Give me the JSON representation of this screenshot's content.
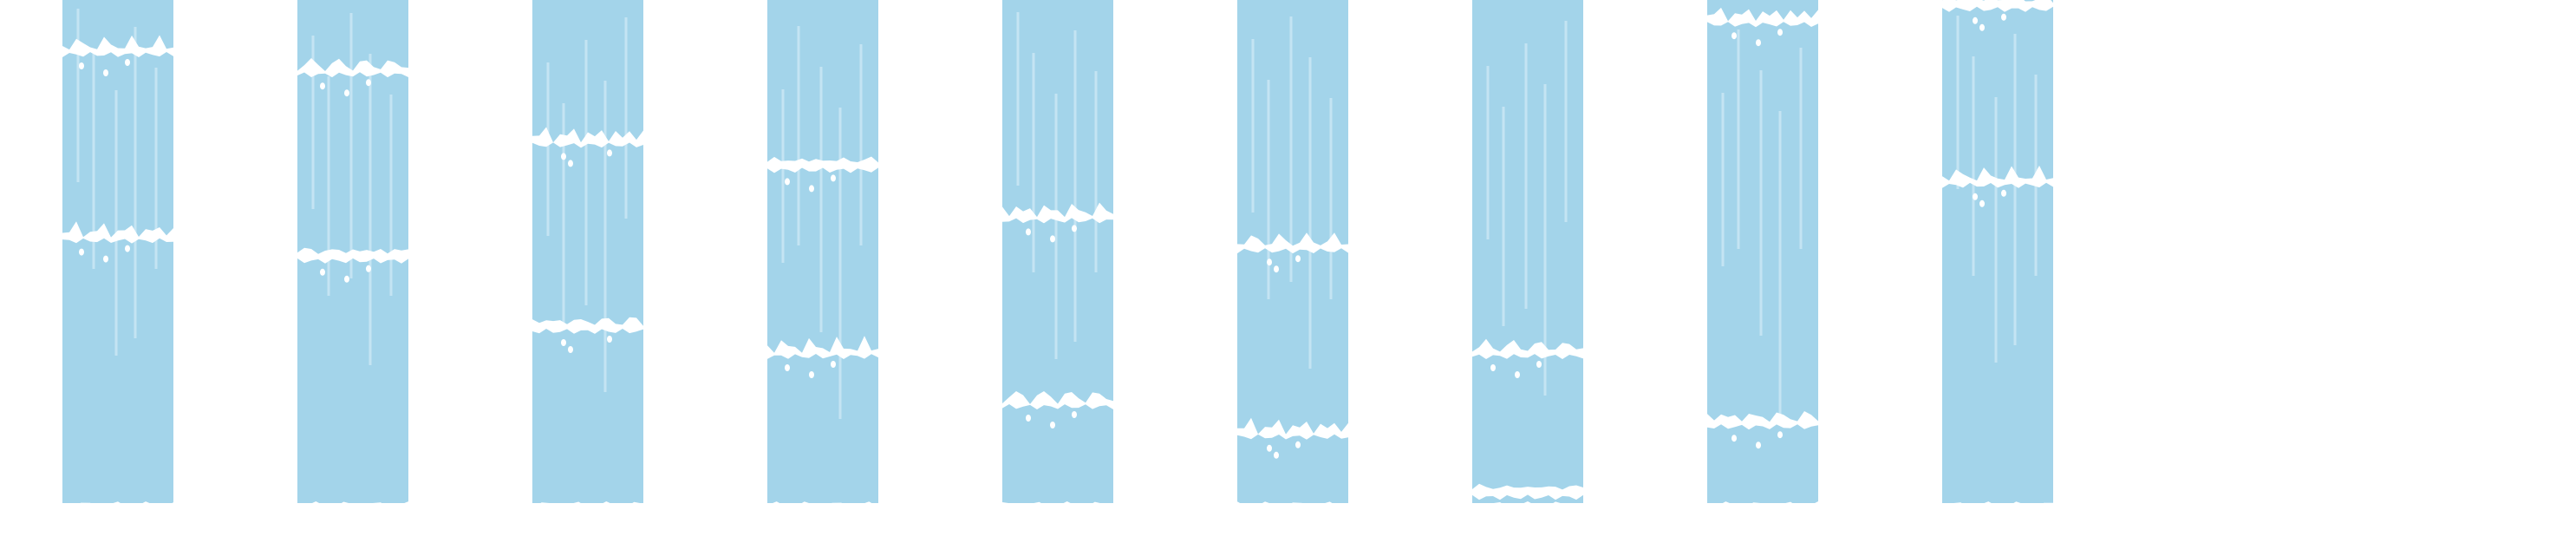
{
  "sprite_sheet": {
    "description_text": "",
    "colors": {
      "water": "#a3d4ea",
      "streak": "#c4e4f3",
      "foam": "#ffffff",
      "background": "#ffffff"
    },
    "frame_count": 9,
    "frames": [
      {
        "index": 1,
        "foam_levels": [
          0.1,
          0.47
        ],
        "icon": "waterfall-frame"
      },
      {
        "index": 2,
        "foam_levels": [
          0.14,
          0.51
        ],
        "icon": "waterfall-frame"
      },
      {
        "index": 3,
        "foam_levels": [
          0.28,
          0.65
        ],
        "icon": "waterfall-frame"
      },
      {
        "index": 4,
        "foam_levels": [
          0.33,
          0.7
        ],
        "icon": "waterfall-frame"
      },
      {
        "index": 5,
        "foam_levels": [
          0.43,
          0.8
        ],
        "icon": "waterfall-frame"
      },
      {
        "index": 6,
        "foam_levels": [
          0.49,
          0.86
        ],
        "icon": "waterfall-frame"
      },
      {
        "index": 7,
        "foam_levels": [
          0.7,
          0.98
        ],
        "icon": "waterfall-frame"
      },
      {
        "index": 8,
        "foam_levels": [
          0.04,
          0.84
        ],
        "icon": "waterfall-frame"
      },
      {
        "index": 9,
        "foam_levels": [
          0.01,
          0.36
        ],
        "icon": "waterfall-frame"
      }
    ]
  }
}
